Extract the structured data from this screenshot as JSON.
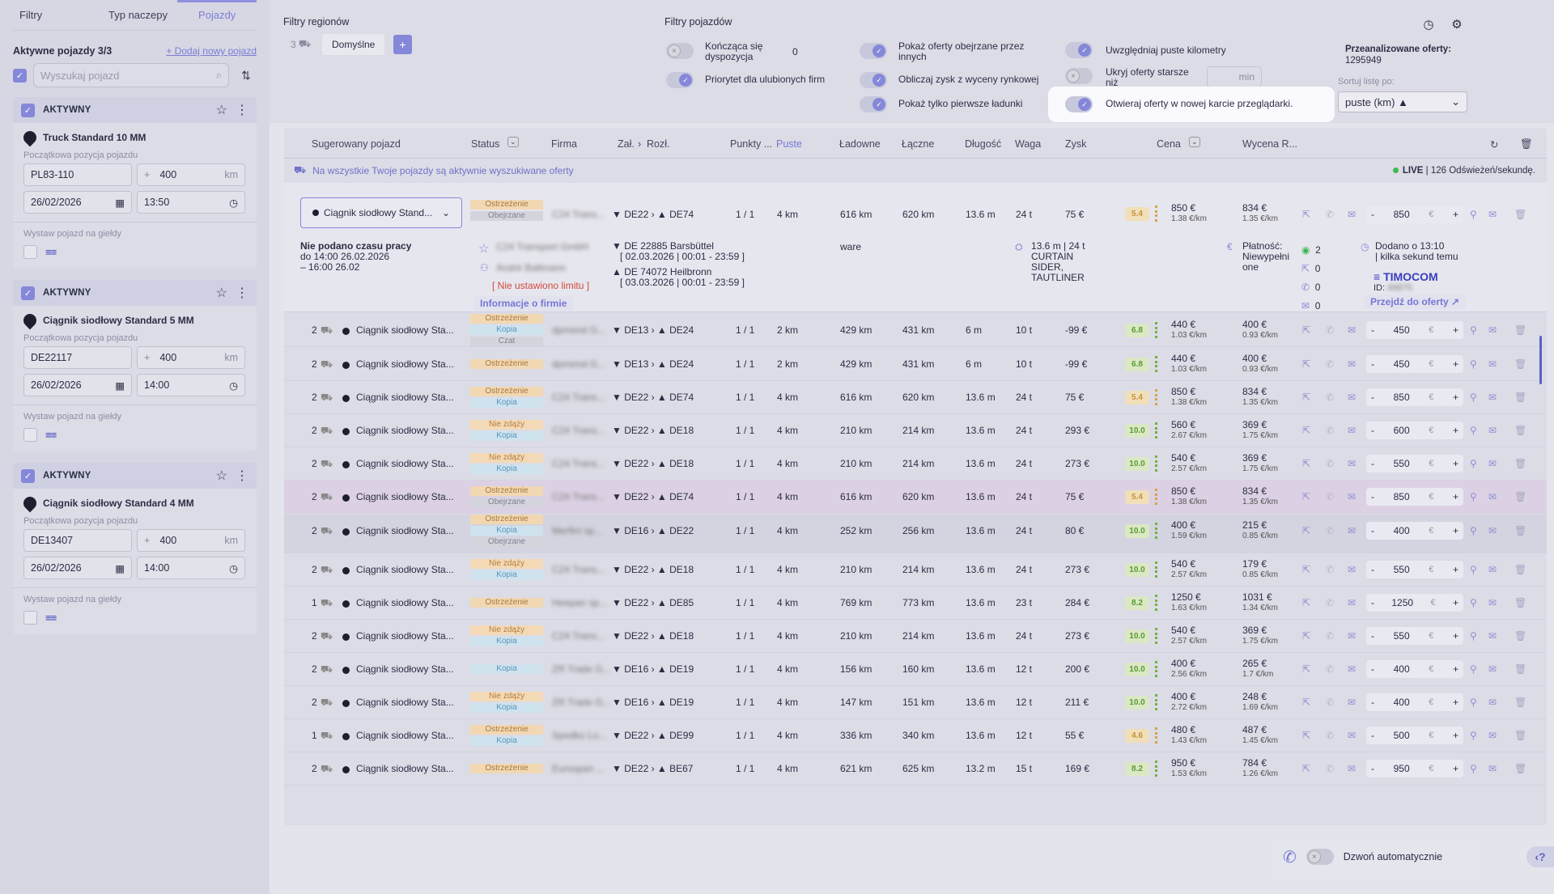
{
  "sidebar": {
    "tabs": [
      "Filtry",
      "Typ naczepy",
      "Pojazdy"
    ],
    "active_vehicles": "Aktywne pojazdy 3/3",
    "add_vehicle": "+ Dodaj nowy pojazd",
    "search_placeholder": "Wyszukaj pojazd",
    "vehicles": [
      {
        "status": "AKTYWNY",
        "name": "Truck Standard 10 MM",
        "start_label": "Początkowa pozycja pojazdu",
        "location": "PL83-110",
        "radius": "400",
        "unit": "km",
        "date": "26/02/2026",
        "time": "13:50",
        "exchange_label": "Wystaw pojazd na giełdy"
      },
      {
        "status": "AKTYWNY",
        "name": "Ciągnik siodłowy Standard 5 MM",
        "start_label": "Początkowa pozycja pojazdu",
        "location": "DE22117",
        "radius": "400",
        "unit": "km",
        "date": "26/02/2026",
        "time": "14:00",
        "exchange_label": "Wystaw pojazd na giełdy"
      },
      {
        "status": "AKTYWNY",
        "name": "Ciągnik siodłowy Standard 4 MM",
        "start_label": "Początkowa pozycja pojazdu",
        "location": "DE13407",
        "radius": "400",
        "unit": "km",
        "date": "26/02/2026",
        "time": "14:00",
        "exchange_label": "Wystaw pojazd na giełdy"
      }
    ]
  },
  "filters": {
    "region_title": "Filtry regionów",
    "region_count": "3",
    "region_default": "Domyślne",
    "region_add": "+",
    "vehicle_title": "Filtry pojazdów",
    "toggles": {
      "ending": "Kończąca się dyspozycja",
      "ending_value": "0",
      "priority": "Priorytet dla ulubionych firm",
      "show_viewed": "Pokaż oferty obejrzane przez innych",
      "calc_profit": "Obliczaj zysk z wyceny rynkowej",
      "first_loads": "Pokaż tylko pierwsze ładunki",
      "empty_km": "Uwzględniaj puste kilometry",
      "hide_older": "Ukryj oferty starsze niż",
      "hide_older_unit": "min",
      "new_tab": "Otwieraj oferty w nowej karcie przeglądarki."
    },
    "analyzed_label": "Przeanalizowane oferty:",
    "analyzed_value": "1295949",
    "sort_label": "Sortuj listę po:",
    "sort_value": "puste (km) ▲"
  },
  "table": {
    "headers": {
      "vehicle": "Sugerowany pojazd",
      "status": "Status",
      "company": "Firma",
      "load": "Zał.",
      "unload": "Rozł.",
      "points": "Punkty ...",
      "empty": "Puste",
      "loaded": "Ładowne",
      "total": "Łączne",
      "length": "Długość",
      "weight": "Waga",
      "profit": "Zysk",
      "price": "Cena",
      "valuation": "Wycena R..."
    },
    "banner": "Na wszystkie Twoje pojazdy są aktywnie wyszukiwane oferty",
    "live_label": "LIVE",
    "live_rate": "| 126 Odświeżeń/sekundę.",
    "expanded": {
      "vehicle": "Ciągnik siodłowy Stand...",
      "tags": [
        "Ostrzeżenie",
        "Obejrzane"
      ],
      "company": "C24 Trans...",
      "from": "DE22",
      "to": "DE74",
      "points": "1 / 1",
      "empty": "4 km",
      "loaded": "616 km",
      "total": "620 km",
      "length": "13.6 m",
      "weight": "24 t",
      "profit": "75 €",
      "score": "5.4",
      "price": "850 €",
      "price_km": "1.38 €/km",
      "val": "834 €",
      "val_km": "1.35 €/km",
      "offer": "850",
      "worktime1": "Nie podano czasu pracy",
      "worktime2": "do 14:00 26.02.2026",
      "worktime3": "– 16:00 26.02",
      "company_full": "C24 Transport GmbH",
      "contact": "André Baltmann",
      "no_limit": "[ Nie ustawiono limitu ]",
      "company_info": "Informacje o firmie",
      "load_addr": "DE 22885 Barsbüttel",
      "load_time": "[ 02.03.2026 | 00:01 - 23:59 ]",
      "unload_addr": "DE 74072 Heilbronn",
      "unload_time": "[ 03.03.2026 | 00:01 - 23:59 ]",
      "goods": "ware",
      "dims1": "13.6 m | 24 t",
      "dims2": "CURTAIN",
      "dims3": "SIDER,",
      "dims4": "TAUTLINER",
      "payment1": "Płatność:",
      "payment2": "Niewypełni",
      "payment3": "one",
      "stats": [
        "2",
        "0",
        "0",
        "0"
      ],
      "added1": "Dodano o 13:10",
      "added2": "| kilka sekund temu",
      "source": "TIMOCOM",
      "source_id": "ID:",
      "source_id_val": "49875",
      "goto": "Przejdź do oferty ↗"
    },
    "rows": [
      {
        "count": "2",
        "vehicle": "Ciągnik siodłowy Sta...",
        "tags": [
          "Ostrzeżenie",
          "Kopia",
          "Czat"
        ],
        "company": "dpmend G...",
        "from": "DE13",
        "to": "DE24",
        "points": "1 / 1",
        "empty": "2 km",
        "loaded": "429 km",
        "total": "431 km",
        "length": "6 m",
        "weight": "10 t",
        "profit": "-99 €",
        "score": "6.8",
        "price": "440 €",
        "price_km": "1.03 €/km",
        "val": "400 €",
        "val_km": "0.93 €/km",
        "offer": "450"
      },
      {
        "count": "2",
        "vehicle": "Ciągnik siodłowy Sta...",
        "tags": [
          "Ostrzeżenie"
        ],
        "company": "dpmend G...",
        "from": "DE13",
        "to": "DE24",
        "points": "1 / 1",
        "empty": "2 km",
        "loaded": "429 km",
        "total": "431 km",
        "length": "6 m",
        "weight": "10 t",
        "profit": "-99 €",
        "score": "6.8",
        "price": "440 €",
        "price_km": "1.03 €/km",
        "val": "400 €",
        "val_km": "0.93 €/km",
        "offer": "450"
      },
      {
        "count": "2",
        "vehicle": "Ciągnik siodłowy Sta...",
        "tags": [
          "Ostrzeżenie",
          "Kopia"
        ],
        "company": "C24 Trans...",
        "from": "DE22",
        "to": "DE74",
        "points": "1 / 1",
        "empty": "4 km",
        "loaded": "616 km",
        "total": "620 km",
        "length": "13.6 m",
        "weight": "24 t",
        "profit": "75 €",
        "score": "5.4",
        "price": "850 €",
        "price_km": "1.38 €/km",
        "val": "834 €",
        "val_km": "1.35 €/km",
        "offer": "850"
      },
      {
        "count": "2",
        "vehicle": "Ciągnik siodłowy Sta...",
        "tags": [
          "Nie zdąży",
          "Kopia"
        ],
        "company": "C24 Trans...",
        "from": "DE22",
        "to": "DE18",
        "points": "1 / 1",
        "empty": "4 km",
        "loaded": "210 km",
        "total": "214 km",
        "length": "13.6 m",
        "weight": "24 t",
        "profit": "293 €",
        "score": "10.0",
        "price": "560 €",
        "price_km": "2.67 €/km",
        "val": "369 €",
        "val_km": "1.75 €/km",
        "offer": "600"
      },
      {
        "count": "2",
        "vehicle": "Ciągnik siodłowy Sta...",
        "tags": [
          "Nie zdąży",
          "Kopia"
        ],
        "company": "C24 Trans...",
        "from": "DE22",
        "to": "DE18",
        "points": "1 / 1",
        "empty": "4 km",
        "loaded": "210 km",
        "total": "214 km",
        "length": "13.6 m",
        "weight": "24 t",
        "profit": "273 €",
        "score": "10.0",
        "price": "540 €",
        "price_km": "2.57 €/km",
        "val": "369 €",
        "val_km": "1.75 €/km",
        "offer": "550"
      },
      {
        "count": "2",
        "vehicle": "Ciągnik siodłowy Sta...",
        "tags": [
          "Ostrzeżenie",
          "Obejrzane"
        ],
        "company": "C24 Trans...",
        "from": "DE22",
        "to": "DE74",
        "points": "1 / 1",
        "empty": "4 km",
        "loaded": "616 km",
        "total": "620 km",
        "length": "13.6 m",
        "weight": "24 t",
        "profit": "75 €",
        "score": "5.4",
        "price": "850 €",
        "price_km": "1.38 €/km",
        "val": "834 €",
        "val_km": "1.35 €/km",
        "offer": "850"
      },
      {
        "count": "2",
        "vehicle": "Ciągnik siodłowy Sta...",
        "tags": [
          "Ostrzeżenie",
          "Kopia",
          "Obejrzane"
        ],
        "company": "Merfini sp...",
        "from": "DE16",
        "to": "DE22",
        "points": "1 / 1",
        "empty": "4 km",
        "loaded": "252 km",
        "total": "256 km",
        "length": "13.6 m",
        "weight": "24 t",
        "profit": "80 €",
        "score": "10.0",
        "price": "400 €",
        "price_km": "1.59 €/km",
        "val": "215 €",
        "val_km": "0.85 €/km",
        "offer": "400"
      },
      {
        "count": "2",
        "vehicle": "Ciągnik siodłowy Sta...",
        "tags": [
          "Nie zdąży",
          "Kopia"
        ],
        "company": "C24 Trans...",
        "from": "DE22",
        "to": "DE18",
        "points": "1 / 1",
        "empty": "4 km",
        "loaded": "210 km",
        "total": "214 km",
        "length": "13.6 m",
        "weight": "24 t",
        "profit": "273 €",
        "score": "10.0",
        "price": "540 €",
        "price_km": "2.57 €/km",
        "val": "179 €",
        "val_km": "0.85 €/km",
        "offer": "550"
      },
      {
        "count": "1",
        "vehicle": "Ciągnik siodłowy Sta...",
        "tags": [
          "Ostrzeżenie"
        ],
        "company": "Heepan sp...",
        "from": "DE22",
        "to": "DE85",
        "points": "1 / 1",
        "empty": "4 km",
        "loaded": "769 km",
        "total": "773 km",
        "length": "13.6 m",
        "weight": "23 t",
        "profit": "284 €",
        "score": "8.2",
        "price": "1250 €",
        "price_km": "1.63 €/km",
        "val": "1031 €",
        "val_km": "1.34 €/km",
        "offer": "1250"
      },
      {
        "count": "2",
        "vehicle": "Ciągnik siodłowy Sta...",
        "tags": [
          "Nie zdąży",
          "Kopia"
        ],
        "company": "C24 Trans...",
        "from": "DE22",
        "to": "DE18",
        "points": "1 / 1",
        "empty": "4 km",
        "loaded": "210 km",
        "total": "214 km",
        "length": "13.6 m",
        "weight": "24 t",
        "profit": "273 €",
        "score": "10.0",
        "price": "540 €",
        "price_km": "2.57 €/km",
        "val": "369 €",
        "val_km": "1.75 €/km",
        "offer": "550"
      },
      {
        "count": "2",
        "vehicle": "Ciągnik siodłowy Sta...",
        "tags": [
          "Kopia"
        ],
        "company": "ZR Trade G...",
        "from": "DE16",
        "to": "DE19",
        "points": "1 / 1",
        "empty": "4 km",
        "loaded": "156 km",
        "total": "160 km",
        "length": "13.6 m",
        "weight": "12 t",
        "profit": "200 €",
        "score": "10.0",
        "price": "400 €",
        "price_km": "2.56 €/km",
        "val": "265 €",
        "val_km": "1.7 €/km",
        "offer": "400"
      },
      {
        "count": "2",
        "vehicle": "Ciągnik siodłowy Sta...",
        "tags": [
          "Nie zdąży",
          "Kopia"
        ],
        "company": "ZR Trade G...",
        "from": "DE16",
        "to": "DE19",
        "points": "1 / 1",
        "empty": "4 km",
        "loaded": "147 km",
        "total": "151 km",
        "length": "13.6 m",
        "weight": "12 t",
        "profit": "211 €",
        "score": "10.0",
        "price": "400 €",
        "price_km": "2.72 €/km",
        "val": "248 €",
        "val_km": "1.69 €/km",
        "offer": "400"
      },
      {
        "count": "1",
        "vehicle": "Ciągnik siodłowy Sta...",
        "tags": [
          "Ostrzeżenie",
          "Kopia"
        ],
        "company": "Spedko Lo...",
        "from": "DE22",
        "to": "DE99",
        "points": "1 / 1",
        "empty": "4 km",
        "loaded": "336 km",
        "total": "340 km",
        "length": "13.6 m",
        "weight": "12 t",
        "profit": "55 €",
        "score": "4.6",
        "price": "480 €",
        "price_km": "1.43 €/km",
        "val": "487 €",
        "val_km": "1.45 €/km",
        "offer": "500"
      },
      {
        "count": "2",
        "vehicle": "Ciągnik siodłowy Sta...",
        "tags": [
          "Ostrzeżenie"
        ],
        "company": "Eurospan ...",
        "from": "DE22",
        "to": "BE67",
        "points": "1 / 1",
        "empty": "4 km",
        "loaded": "621 km",
        "total": "625 km",
        "length": "13.2 m",
        "weight": "15 t",
        "profit": "169 €",
        "score": "8.2",
        "price": "950 €",
        "price_km": "1.53 €/km",
        "val": "784 €",
        "val_km": "1.26 €/km",
        "offer": "950"
      }
    ]
  },
  "bottom": {
    "auto_call": "Dzwoń automatycznie"
  },
  "colors": {
    "accent": "#8587d9",
    "warning_tag": "#f1d8b3",
    "copy_tag": "#cfe3ef",
    "score_good": "#5a9b33",
    "score_mid": "#c59238"
  }
}
